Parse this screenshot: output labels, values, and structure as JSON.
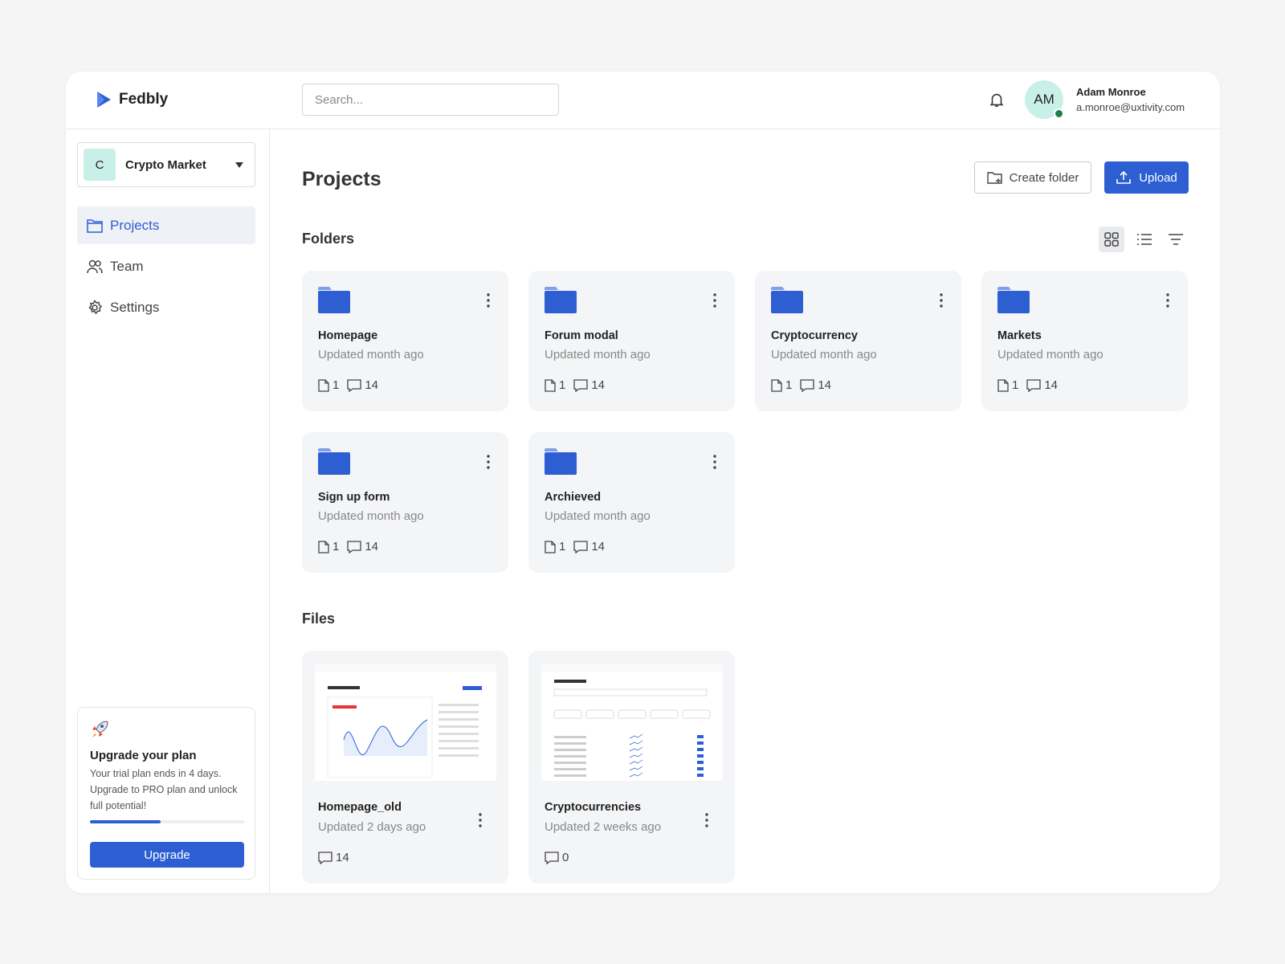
{
  "brand": "Fedbly",
  "search_placeholder": "Search...",
  "user": {
    "initials": "AM",
    "name": "Adam Monroe",
    "email": "a.monroe@uxtivity.com"
  },
  "workspace": {
    "initial": "C",
    "name": "Crypto Market"
  },
  "nav": [
    "Projects",
    "Team",
    "Settings"
  ],
  "upgrade": {
    "title": "Upgrade your plan",
    "text": "Your trial plan ends in 4 days. Upgrade to PRO plan and unlock full potential!",
    "button": "Upgrade"
  },
  "page": {
    "title": "Projects",
    "create_folder": "Create folder",
    "upload": "Upload"
  },
  "folders": {
    "heading": "Folders",
    "items": [
      {
        "name": "Homepage",
        "updated": "Updated month ago",
        "files": 1,
        "comments": 14
      },
      {
        "name": "Forum modal",
        "updated": "Updated month ago",
        "files": 1,
        "comments": 14
      },
      {
        "name": "Cryptocurrency",
        "updated": "Updated month ago",
        "files": 1,
        "comments": 14
      },
      {
        "name": "Markets",
        "updated": "Updated month ago",
        "files": 1,
        "comments": 14
      },
      {
        "name": "Sign up form",
        "updated": "Updated month ago",
        "files": 1,
        "comments": 14
      },
      {
        "name": "Archieved",
        "updated": "Updated month ago",
        "files": 1,
        "comments": 14
      }
    ]
  },
  "files": {
    "heading": "Files",
    "items": [
      {
        "name": "Homepage_old",
        "updated": "Updated 2 days ago",
        "comments": 14
      },
      {
        "name": "Cryptocurrencies",
        "updated": "Updated 2 weeks ago",
        "comments": 0
      }
    ]
  }
}
